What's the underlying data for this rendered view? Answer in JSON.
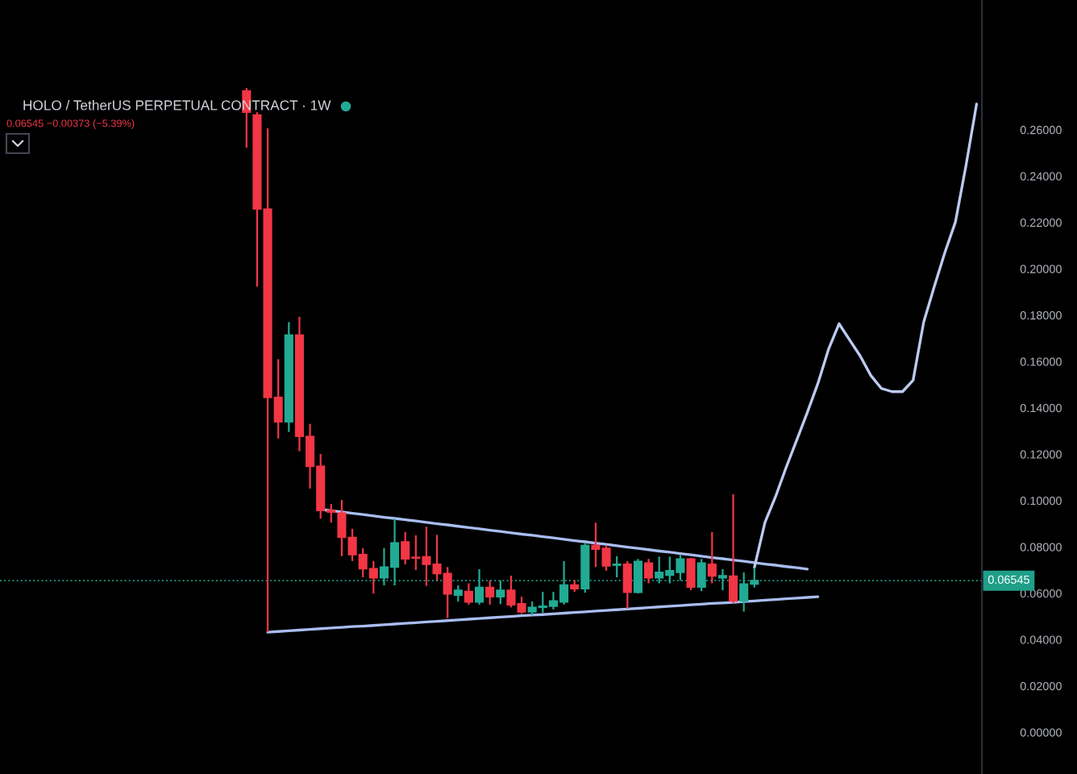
{
  "chart_data": {
    "type": "candlestick",
    "title": "HOLO / TetherUS PERPETUAL CONTRACT · 1W",
    "subtitle": "0.06545 −0.00373 (−5.39%)",
    "categories": [
      null,
      null,
      null,
      null,
      null,
      null,
      null,
      null,
      null,
      null,
      null,
      null,
      null,
      null,
      null,
      null,
      null,
      null,
      null,
      null,
      null,
      null,
      null,
      null,
      null,
      null,
      null,
      null,
      null,
      null,
      null,
      null,
      null,
      null,
      null,
      null,
      null,
      null,
      null,
      null,
      null,
      null,
      null,
      null,
      null,
      null,
      null,
      null,
      null,
      null,
      null,
      null,
      null,
      null,
      null,
      null,
      null,
      null,
      null,
      null,
      null,
      null,
      null,
      null,
      null,
      null,
      null,
      null,
      null,
      null
    ],
    "ohlc": [
      [
        0.2767,
        0.278,
        0.2523,
        0.2676
      ],
      [
        0.2664,
        0.2676,
        0.1923,
        0.2258
      ],
      [
        0.2258,
        0.2606,
        0.0432,
        0.1445
      ],
      [
        0.1445,
        0.161,
        0.1268,
        0.134
      ],
      [
        0.134,
        0.177,
        0.1296,
        0.1714
      ],
      [
        0.1714,
        0.1793,
        0.1213,
        0.1277
      ],
      [
        0.1277,
        0.1331,
        0.1052,
        0.1148
      ],
      [
        0.1148,
        0.1201,
        0.0922,
        0.0957
      ],
      [
        0.0957,
        0.0985,
        0.0905,
        0.095
      ],
      [
        0.0946,
        0.1003,
        0.076,
        0.0841
      ],
      [
        0.0841,
        0.0878,
        0.0739,
        0.0767
      ],
      [
        0.0767,
        0.0794,
        0.0669,
        0.0706
      ],
      [
        0.0706,
        0.0739,
        0.0599,
        0.0667
      ],
      [
        0.0667,
        0.0794,
        0.0634,
        0.0713
      ],
      [
        0.0713,
        0.0922,
        0.0634,
        0.0817
      ],
      [
        0.0822,
        0.0864,
        0.0725,
        0.0748
      ],
      [
        0.0755,
        0.085,
        0.07,
        0.0752
      ],
      [
        0.0757,
        0.0887,
        0.0632,
        0.0725
      ],
      [
        0.0725,
        0.0852,
        0.0655,
        0.0685
      ],
      [
        0.0685,
        0.0713,
        0.0493,
        0.0597
      ],
      [
        0.0592,
        0.0634,
        0.0564,
        0.0613
      ],
      [
        0.0608,
        0.0643,
        0.0551,
        0.0562
      ],
      [
        0.0562,
        0.0704,
        0.0551,
        0.0625
      ],
      [
        0.0625,
        0.0655,
        0.0551,
        0.0585
      ],
      [
        0.0585,
        0.0655,
        0.0553,
        0.0613
      ],
      [
        0.0613,
        0.0676,
        0.0539,
        0.055
      ],
      [
        0.0555,
        0.0585,
        0.0511,
        0.052
      ],
      [
        0.052,
        0.0564,
        0.0506,
        0.0539
      ],
      [
        0.0539,
        0.0606,
        0.0516,
        0.0544
      ],
      [
        0.0544,
        0.0606,
        0.053,
        0.0567
      ],
      [
        0.0562,
        0.0739,
        0.0551,
        0.0636
      ],
      [
        0.0636,
        0.0657,
        0.0606,
        0.062
      ],
      [
        0.062,
        0.0818,
        0.0602,
        0.0806
      ],
      [
        0.0806,
        0.0904,
        0.0713,
        0.079
      ],
      [
        0.0794,
        0.0806,
        0.0697,
        0.0718
      ],
      [
        0.0721,
        0.076,
        0.0669,
        0.0725
      ],
      [
        0.0725,
        0.0739,
        0.0534,
        0.0604
      ],
      [
        0.0604,
        0.0748,
        0.0599,
        0.0737
      ],
      [
        0.073,
        0.0748,
        0.0643,
        0.0667
      ],
      [
        0.0667,
        0.0758,
        0.0643,
        0.069
      ],
      [
        0.0678,
        0.0758,
        0.0643,
        0.0697
      ],
      [
        0.069,
        0.0765,
        0.0655,
        0.0748
      ],
      [
        0.0748,
        0.0753,
        0.0613,
        0.0627
      ],
      [
        0.0627,
        0.0748,
        0.0609,
        0.073
      ],
      [
        0.0725,
        0.0864,
        0.0643,
        0.0674
      ],
      [
        0.0667,
        0.0704,
        0.0613,
        0.0676
      ],
      [
        0.0674,
        0.1027,
        0.0558,
        0.0567
      ],
      [
        0.0567,
        0.069,
        0.0521,
        0.064
      ],
      [
        0.064,
        0.0711,
        0.0625,
        0.06545
      ],
      null,
      null,
      null,
      null,
      null,
      null,
      null,
      null,
      null,
      null,
      null,
      null,
      null,
      null,
      null,
      null,
      null,
      null,
      null,
      null,
      null
    ],
    "colors": [
      "#f23645",
      "#f23645",
      "#f23645",
      "#f23645",
      "#22ab94",
      "#f23645",
      "#f23645",
      "#f23645",
      "#f23645",
      "#f23645",
      "#f23645",
      "#f23645",
      "#f23645",
      "#22ab94",
      "#22ab94",
      "#f23645",
      "#f23645",
      "#f23645",
      "#f23645",
      "#f23645",
      "#22ab94",
      "#f23645",
      "#22ab94",
      "#f23645",
      "#22ab94",
      "#f23645",
      "#f23645",
      "#22ab94",
      "#22ab94",
      "#22ab94",
      "#22ab94",
      "#f23645",
      "#22ab94",
      "#f23645",
      "#f23645",
      "#22ab94",
      "#f23645",
      "#22ab94",
      "#f23645",
      "#22ab94",
      "#22ab94",
      "#22ab94",
      "#f23645",
      "#22ab94",
      "#f23645",
      "#22ab94",
      "#f23645",
      "#22ab94",
      "#22ab94",
      null,
      null,
      null,
      null,
      null,
      null,
      null,
      null,
      null,
      null,
      null,
      null,
      null,
      null,
      null,
      null,
      null,
      null,
      null,
      null,
      null
    ],
    "series": [
      {
        "type": "line",
        "color": "#a9bdf0",
        "values": [
          null,
          null,
          null,
          null,
          null,
          null,
          null,
          0.0962,
          0.0956,
          0.0951,
          0.0945,
          0.094,
          0.0934,
          0.0928,
          0.0923,
          0.0917,
          0.0912,
          0.0906,
          0.09,
          0.0895,
          0.0889,
          0.0883,
          0.0878,
          0.0872,
          0.0867,
          0.0861,
          0.0855,
          0.085,
          0.0844,
          0.0839,
          0.0833,
          0.0827,
          0.0822,
          0.0816,
          0.0811,
          0.0805,
          0.0799,
          0.0794,
          0.0788,
          0.0782,
          0.0777,
          0.0771,
          0.0766,
          0.076,
          0.0754,
          0.0749,
          0.0743,
          0.0738,
          0.0732,
          0.0726,
          0.0721,
          0.0715,
          0.071,
          0.0704,
          null,
          null,
          null,
          null,
          null,
          null,
          null,
          null,
          null,
          null,
          null,
          null,
          null,
          null,
          null,
          null
        ]
      },
      {
        "type": "line",
        "color": "#a9bdf0",
        "values": [
          null,
          null,
          0.0432,
          0.0435,
          0.0438,
          0.0441,
          0.0444,
          0.0447,
          0.045,
          0.0453,
          0.0456,
          0.0458,
          0.0461,
          0.0464,
          0.0467,
          0.047,
          0.0473,
          0.0476,
          0.0479,
          0.0482,
          0.0485,
          0.0488,
          0.0491,
          0.0494,
          0.0497,
          0.05,
          0.0503,
          0.0506,
          0.0508,
          0.0511,
          0.0514,
          0.0517,
          0.052,
          0.0523,
          0.0526,
          0.0529,
          0.0532,
          0.0535,
          0.0538,
          0.0541,
          0.0544,
          0.0547,
          0.055,
          0.0553,
          0.0556,
          0.0558,
          0.0561,
          0.0564,
          0.0567,
          0.057,
          0.0573,
          0.0576,
          0.0579,
          0.0582,
          0.0585,
          null,
          null,
          null,
          null,
          null,
          null,
          null,
          null,
          null,
          null,
          null,
          null,
          null,
          null,
          null
        ]
      },
      {
        "type": "line",
        "color": "#bccbf2",
        "values": [
          null,
          null,
          null,
          null,
          null,
          null,
          null,
          null,
          null,
          null,
          null,
          null,
          null,
          null,
          null,
          null,
          null,
          null,
          null,
          null,
          null,
          null,
          null,
          null,
          null,
          null,
          null,
          null,
          null,
          null,
          null,
          null,
          null,
          null,
          null,
          null,
          null,
          null,
          null,
          null,
          null,
          null,
          null,
          null,
          null,
          null,
          null,
          null,
          0.0711,
          0.0906,
          0.1017,
          0.1143,
          0.1261,
          0.138,
          0.1505,
          0.1652,
          0.1763,
          0.1693,
          0.1624,
          0.154,
          0.1484,
          0.147,
          0.147,
          0.1519,
          0.177,
          0.1923,
          0.207,
          0.2202,
          0.2446,
          0.2711
        ]
      }
    ],
    "ylim": [
      -0.018,
      0.316
    ],
    "yticks": [
      {
        "value": 0.0,
        "label": "0.00000"
      },
      {
        "value": 0.02,
        "label": "0.02000"
      },
      {
        "value": 0.04,
        "label": "0.04000"
      },
      {
        "value": 0.06,
        "label": "0.06000"
      },
      {
        "value": 0.08,
        "label": "0.08000"
      },
      {
        "value": 0.1,
        "label": "0.10000"
      },
      {
        "value": 0.12,
        "label": "0.12000"
      },
      {
        "value": 0.14,
        "label": "0.14000"
      },
      {
        "value": 0.16,
        "label": "0.16000"
      },
      {
        "value": 0.18,
        "label": "0.18000"
      },
      {
        "value": 0.2,
        "label": "0.20000"
      },
      {
        "value": 0.22,
        "label": "0.22000"
      },
      {
        "value": 0.24,
        "label": "0.24000"
      },
      {
        "value": 0.26,
        "label": "0.26000"
      }
    ],
    "ref_lines": [
      {
        "axis": "y",
        "value": 0.06545,
        "label": "0.06545",
        "color": "#1f9e88",
        "line_style": "dotted"
      }
    ],
    "tick_labels": "y"
  }
}
